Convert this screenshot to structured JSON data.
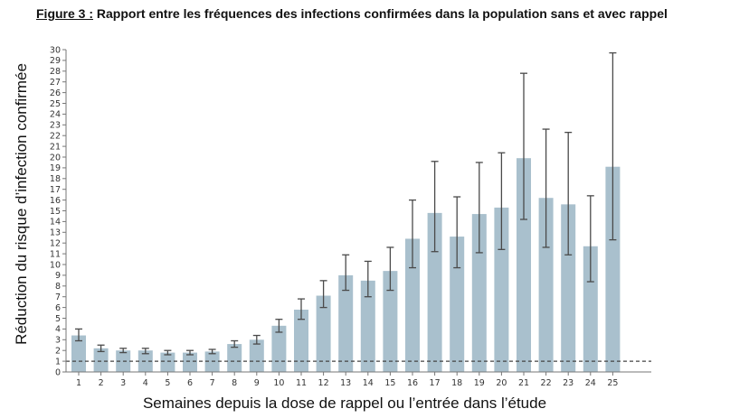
{
  "figure": {
    "title_prefix": "Figure 3 :",
    "title_text": " Rapport entre les fréquences des infections confirmées dans la population sans et avec rappel"
  },
  "colors": {
    "bar": "#a9c0cd",
    "error_bar": "#4a4a4a",
    "axis": "#777777",
    "reference_line": "#444444"
  },
  "chart_data": {
    "type": "bar",
    "title": "Figure 3 : Rapport entre les fréquences des infections confirmées dans la population sans et avec rappel",
    "xlabel": "Semaines depuis la dose de rappel ou l’entrée dans l’étude",
    "ylabel": "Réduction du risque d’infection confirmée",
    "ylim": [
      0,
      30
    ],
    "yticks": [
      0,
      1,
      2,
      3,
      4,
      5,
      6,
      7,
      8,
      9,
      10,
      11,
      12,
      13,
      14,
      15,
      16,
      17,
      18,
      19,
      20,
      21,
      22,
      23,
      24,
      25,
      26,
      27,
      28,
      29,
      30
    ],
    "categories": [
      "1",
      "2",
      "3",
      "4",
      "5",
      "6",
      "7",
      "8",
      "9",
      "10",
      "11",
      "12",
      "13",
      "14",
      "15",
      "16",
      "17",
      "18",
      "19",
      "20",
      "21",
      "22",
      "23",
      "24",
      "25"
    ],
    "values": [
      3.4,
      2.2,
      2.0,
      2.0,
      1.8,
      1.8,
      1.9,
      2.6,
      3.0,
      4.3,
      5.8,
      7.1,
      9.0,
      8.5,
      9.4,
      12.4,
      14.8,
      12.6,
      14.7,
      15.3,
      19.9,
      16.2,
      15.6,
      11.7,
      19.1
    ],
    "error_low": [
      2.9,
      1.9,
      1.8,
      1.7,
      1.6,
      1.6,
      1.7,
      2.3,
      2.6,
      3.7,
      4.9,
      6.0,
      7.6,
      7.0,
      7.6,
      9.7,
      11.2,
      9.7,
      11.1,
      11.4,
      14.2,
      11.6,
      10.9,
      8.4,
      12.3
    ],
    "error_high": [
      4.0,
      2.5,
      2.2,
      2.2,
      2.0,
      2.0,
      2.1,
      2.9,
      3.4,
      4.9,
      6.8,
      8.5,
      10.9,
      10.3,
      11.6,
      16.0,
      19.6,
      16.3,
      19.5,
      20.4,
      27.8,
      22.6,
      22.3,
      16.4,
      29.7
    ],
    "reference_line": 1
  }
}
